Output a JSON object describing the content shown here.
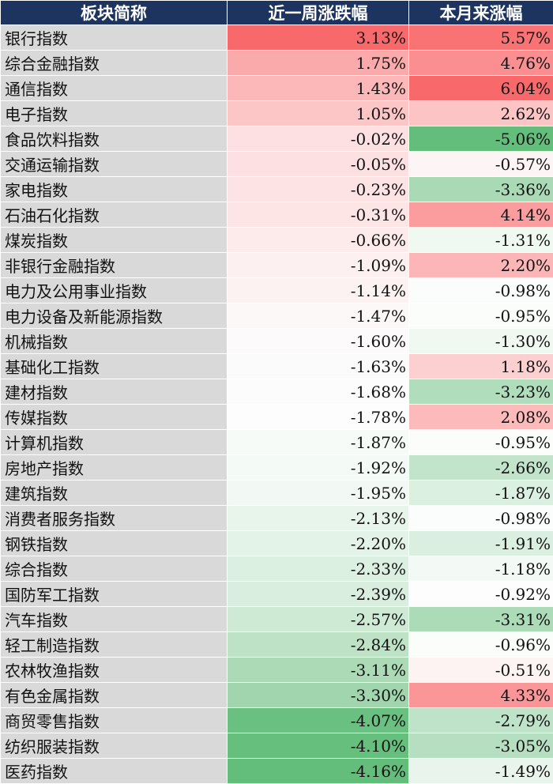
{
  "table": {
    "headers": [
      "板块简称",
      "近一周涨跌幅",
      "本月来涨幅"
    ],
    "rows": [
      {
        "name": "银行指数",
        "week": "3.13%",
        "month": "5.57%",
        "week_color": "#f8696b",
        "month_color": "#f97375"
      },
      {
        "name": "综合金融指数",
        "week": "1.75%",
        "month": "4.76%",
        "week_color": "#fbaaab",
        "month_color": "#fa8e90"
      },
      {
        "name": "通信指数",
        "week": "1.43%",
        "month": "6.04%",
        "week_color": "#fcb7b8",
        "month_color": "#f8696b"
      },
      {
        "name": "电子指数",
        "week": "1.05%",
        "month": "2.62%",
        "week_color": "#fcc6c7",
        "month_color": "#fcc4c5"
      },
      {
        "name": "食品饮料指数",
        "week": "-0.02%",
        "month": "-5.06%",
        "week_color": "#fde0e1",
        "month_color": "#63be7b"
      },
      {
        "name": "交通运输指数",
        "week": "-0.05%",
        "month": "-0.57%",
        "week_color": "#fde0e1",
        "month_color": "#fdf5f5"
      },
      {
        "name": "家电指数",
        "week": "-0.23%",
        "month": "-3.36%",
        "week_color": "#fde3e4",
        "month_color": "#a9dab5"
      },
      {
        "name": "石油石化指数",
        "week": "-0.31%",
        "month": "4.14%",
        "week_color": "#fde4e5",
        "month_color": "#fb9c9e"
      },
      {
        "name": "煤炭指数",
        "week": "-0.66%",
        "month": "-1.31%",
        "week_color": "#fdeaea",
        "month_color": "#f0f8f2"
      },
      {
        "name": "非银行金融指数",
        "week": "-1.09%",
        "month": "2.20%",
        "week_color": "#fdf0f0",
        "month_color": "#fcb6b7"
      },
      {
        "name": "电力及公用事业指数",
        "week": "-1.14%",
        "month": "-0.98%",
        "week_color": "#fdf2f2",
        "month_color": "#fafdfb"
      },
      {
        "name": "电力设备及新能源指数",
        "week": "-1.47%",
        "month": "-0.95%",
        "week_color": "#fcf8f8",
        "month_color": "#fbfdfb"
      },
      {
        "name": "机械指数",
        "week": "-1.60%",
        "month": "-1.30%",
        "week_color": "#fcfafa",
        "month_color": "#f0f8f2"
      },
      {
        "name": "基础化工指数",
        "week": "-1.63%",
        "month": "1.18%",
        "week_color": "#fcfbfb",
        "month_color": "#fcd0d0"
      },
      {
        "name": "建材指数",
        "week": "-1.68%",
        "month": "-3.23%",
        "week_color": "#fcfcfc",
        "month_color": "#b0ddbb"
      },
      {
        "name": "传媒指数",
        "week": "-1.78%",
        "month": "2.08%",
        "week_color": "#fcfdfc",
        "month_color": "#fcbabb"
      },
      {
        "name": "计算机指数",
        "week": "-1.87%",
        "month": "-0.95%",
        "week_color": "#f7fbf8",
        "month_color": "#fbfdfb"
      },
      {
        "name": "房地产指数",
        "week": "-1.92%",
        "month": "-2.66%",
        "week_color": "#f4faf5",
        "month_color": "#c1e4ca"
      },
      {
        "name": "建筑指数",
        "week": "-1.95%",
        "month": "-1.87%",
        "week_color": "#f2f9f4",
        "month_color": "#dbf0e0"
      },
      {
        "name": "消费者服务指数",
        "week": "-2.13%",
        "month": "-0.98%",
        "week_color": "#e8f5eb",
        "month_color": "#fafdfb"
      },
      {
        "name": "钢铁指数",
        "week": "-2.20%",
        "month": "-1.91%",
        "week_color": "#e4f3e8",
        "month_color": "#daefdf"
      },
      {
        "name": "综合指数",
        "week": "-2.33%",
        "month": "-1.18%",
        "week_color": "#dcf0e1",
        "month_color": "#f3f9f4"
      },
      {
        "name": "国防军工指数",
        "week": "-2.39%",
        "month": "-0.92%",
        "week_color": "#d9eede",
        "month_color": "#fcfdfc"
      },
      {
        "name": "汽车指数",
        "week": "-2.57%",
        "month": "-3.31%",
        "week_color": "#ceead5",
        "month_color": "#acdbb8"
      },
      {
        "name": "轻工制造指数",
        "week": "-2.84%",
        "month": "-0.96%",
        "week_color": "#bde2c6",
        "month_color": "#fbfdfb"
      },
      {
        "name": "农林牧渔指数",
        "week": "-3.11%",
        "month": "-0.51%",
        "week_color": "#acdab7",
        "month_color": "#fdf3f3"
      },
      {
        "name": "有色金属指数",
        "week": "-3.30%",
        "month": "4.33%",
        "week_color": "#a0d5ae",
        "month_color": "#fa9698"
      },
      {
        "name": "商贸零售指数",
        "week": "-4.07%",
        "month": "-2.79%",
        "week_color": "#69c080",
        "month_color": "#bee3c8"
      },
      {
        "name": "纺织服装指数",
        "week": "-4.10%",
        "month": "-3.05%",
        "week_color": "#67bf7e",
        "month_color": "#b5dfc0"
      },
      {
        "name": "医药指数",
        "week": "-4.16%",
        "month": "-1.49%",
        "week_color": "#63be7b",
        "month_color": "#e9f5ec"
      }
    ]
  }
}
